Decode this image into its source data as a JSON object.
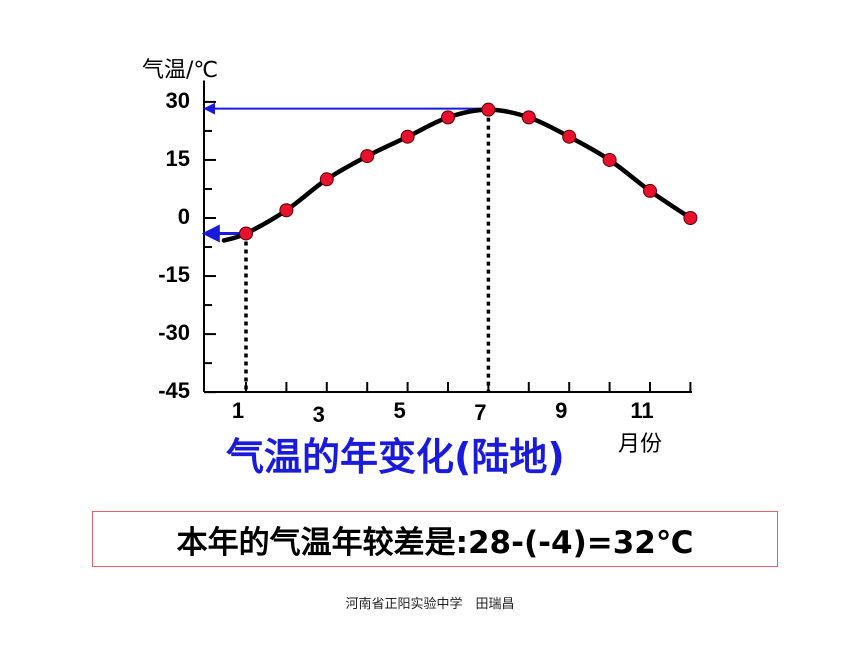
{
  "chart_data": {
    "type": "line",
    "ylabel": "气温/℃",
    "xlabel": "月份",
    "title": "气温的年变化(陆地)",
    "y_ticks": [
      30,
      15,
      0,
      -15,
      -30,
      -45
    ],
    "x_ticks": [
      "1",
      "3",
      "5",
      "7",
      "9",
      "11"
    ],
    "ylim": [
      -45,
      35
    ],
    "xlim": [
      0.5,
      12.5
    ],
    "months": [
      1,
      2,
      3,
      4,
      5,
      6,
      7,
      8,
      9,
      10,
      11,
      12
    ],
    "values": [
      -4,
      2,
      10,
      16,
      21,
      26,
      28,
      26,
      21,
      15,
      7,
      0
    ],
    "marker_color": "#e8112d",
    "line_color": "#000000",
    "arrow_color": "#1a1adc",
    "annotations": {
      "max": {
        "month": 7,
        "value": 28
      },
      "min": {
        "month": 1,
        "value": -4
      }
    }
  },
  "result_text": "本年的气温年较差是:28-(-4)=32℃",
  "credit": "河南省正阳实验中学　田瑞昌"
}
